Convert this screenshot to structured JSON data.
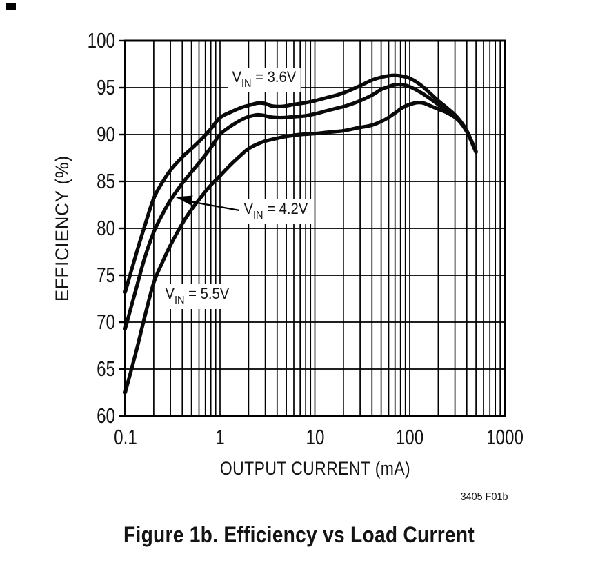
{
  "figure": {
    "code": "3405 F01b",
    "caption": "Figure 1b. Efficiency vs Load Current"
  },
  "chart_data": {
    "type": "line",
    "title": "",
    "xlabel": "OUTPUT CURRENT (mA)",
    "ylabel": "EFFICIENCY (%)",
    "x_scale": "log",
    "xlim": [
      0.1,
      1000
    ],
    "ylim": [
      60,
      100
    ],
    "x_ticks": [
      "0.1",
      "1",
      "10",
      "100",
      "1000"
    ],
    "y_ticks": [
      "100",
      "95",
      "90",
      "85",
      "80",
      "75",
      "70",
      "65",
      "60"
    ],
    "grid": "log minor vertical lines + major horizontal lines, black on white",
    "legend_position": "inline annotations with white backgrounds",
    "series": [
      {
        "name": "VIN = 3.6V",
        "label": {
          "prefix": "V",
          "sub": "IN",
          "suffix": " = 3.6V"
        },
        "points": [
          [
            0.1,
            73.2
          ],
          [
            0.13,
            77.2
          ],
          [
            0.16,
            80.2
          ],
          [
            0.2,
            83.2
          ],
          [
            0.25,
            85.0
          ],
          [
            0.3,
            86.2
          ],
          [
            0.4,
            87.6
          ],
          [
            0.5,
            88.5
          ],
          [
            0.65,
            89.6
          ],
          [
            0.8,
            90.6
          ],
          [
            1,
            91.8
          ],
          [
            1.3,
            92.4
          ],
          [
            1.7,
            92.9
          ],
          [
            2,
            93.1
          ],
          [
            2.5,
            93.35
          ],
          [
            3,
            93.3
          ],
          [
            3.5,
            93.05
          ],
          [
            4.5,
            93.0
          ],
          [
            6,
            93.2
          ],
          [
            8,
            93.4
          ],
          [
            10,
            93.6
          ],
          [
            13,
            93.9
          ],
          [
            17,
            94.2
          ],
          [
            22,
            94.6
          ],
          [
            30,
            95.2
          ],
          [
            40,
            95.8
          ],
          [
            50,
            96.1
          ],
          [
            65,
            96.3
          ],
          [
            80,
            96.25
          ],
          [
            100,
            96.0
          ],
          [
            130,
            95.3
          ],
          [
            160,
            94.5
          ],
          [
            200,
            93.6
          ],
          [
            250,
            92.8
          ],
          [
            320,
            91.8
          ],
          [
            400,
            90.4
          ],
          [
            500,
            88.2
          ]
        ]
      },
      {
        "name": "VIN = 4.2V",
        "label": {
          "prefix": "V",
          "sub": "IN",
          "suffix": " = 4.2V"
        },
        "points": [
          [
            0.1,
            69.3
          ],
          [
            0.13,
            73.5
          ],
          [
            0.16,
            76.8
          ],
          [
            0.2,
            79.6
          ],
          [
            0.25,
            81.6
          ],
          [
            0.3,
            83.0
          ],
          [
            0.4,
            84.8
          ],
          [
            0.5,
            86.0
          ],
          [
            0.65,
            87.4
          ],
          [
            0.8,
            88.6
          ],
          [
            1,
            90.0
          ],
          [
            1.3,
            90.9
          ],
          [
            1.7,
            91.6
          ],
          [
            2,
            91.9
          ],
          [
            2.5,
            92.1
          ],
          [
            3,
            92.0
          ],
          [
            3.5,
            91.85
          ],
          [
            4.5,
            91.8
          ],
          [
            6,
            91.9
          ],
          [
            8,
            92.0
          ],
          [
            10,
            92.2
          ],
          [
            13,
            92.5
          ],
          [
            17,
            92.8
          ],
          [
            22,
            93.1
          ],
          [
            30,
            93.6
          ],
          [
            40,
            94.2
          ],
          [
            50,
            94.8
          ],
          [
            60,
            95.1
          ],
          [
            70,
            95.3
          ],
          [
            85,
            95.3
          ],
          [
            100,
            95.1
          ],
          [
            130,
            94.5
          ],
          [
            160,
            93.9
          ],
          [
            200,
            93.2
          ],
          [
            250,
            92.6
          ],
          [
            320,
            91.7
          ],
          [
            400,
            90.3
          ],
          [
            500,
            88.15
          ]
        ]
      },
      {
        "name": "VIN = 5.5V",
        "label": {
          "prefix": "V",
          "sub": "IN",
          "suffix": " = 5.5V"
        },
        "points": [
          [
            0.1,
            62.5
          ],
          [
            0.13,
            66.8
          ],
          [
            0.16,
            70.5
          ],
          [
            0.2,
            74.2
          ],
          [
            0.25,
            76.5
          ],
          [
            0.3,
            78.2
          ],
          [
            0.4,
            80.5
          ],
          [
            0.5,
            82.0
          ],
          [
            0.65,
            83.5
          ],
          [
            0.8,
            84.6
          ],
          [
            1,
            85.6
          ],
          [
            1.3,
            86.8
          ],
          [
            1.7,
            87.9
          ],
          [
            2,
            88.5
          ],
          [
            2.5,
            89.0
          ],
          [
            3,
            89.3
          ],
          [
            4,
            89.6
          ],
          [
            5,
            89.8
          ],
          [
            7,
            90.0
          ],
          [
            10,
            90.1
          ],
          [
            14,
            90.25
          ],
          [
            20,
            90.4
          ],
          [
            28,
            90.7
          ],
          [
            40,
            91.0
          ],
          [
            55,
            91.6
          ],
          [
            70,
            92.3
          ],
          [
            85,
            92.9
          ],
          [
            100,
            93.2
          ],
          [
            120,
            93.4
          ],
          [
            140,
            93.35
          ],
          [
            170,
            93.0
          ],
          [
            200,
            92.7
          ],
          [
            250,
            92.3
          ],
          [
            320,
            91.6
          ],
          [
            400,
            90.3
          ],
          [
            500,
            88.1
          ]
        ]
      }
    ],
    "annotations": [
      {
        "text": "VIN = 3.6V",
        "target_series": "VIN = 3.6V"
      },
      {
        "text": "VIN = 4.2V",
        "target_series": "VIN = 4.2V",
        "arrow": true
      },
      {
        "text": "VIN = 5.5V",
        "target_series": "VIN = 5.5V"
      }
    ]
  }
}
